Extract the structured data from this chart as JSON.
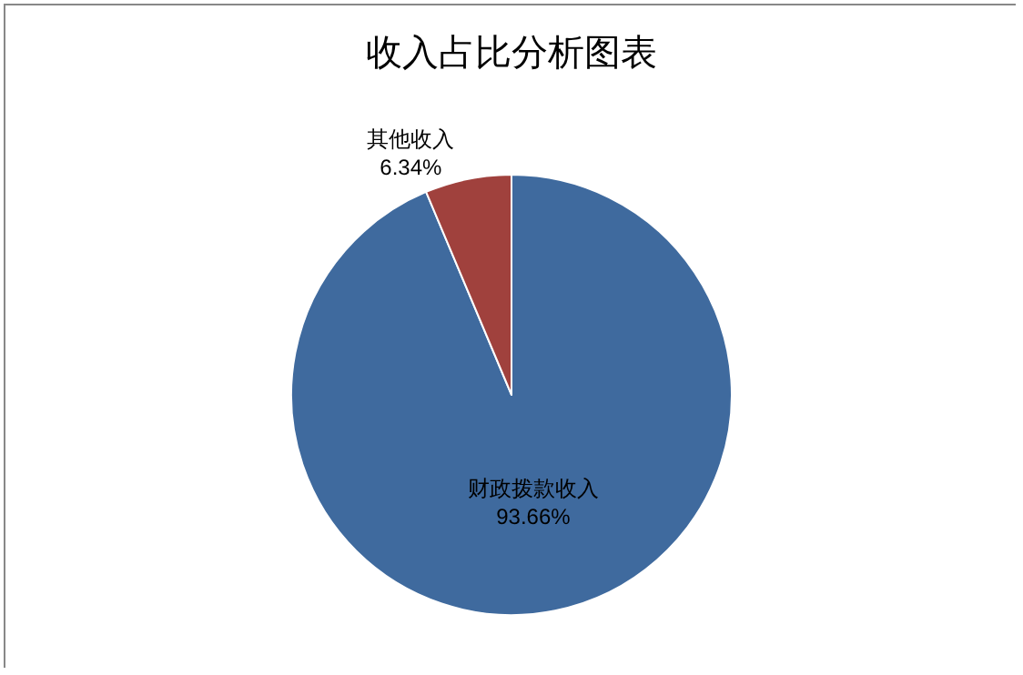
{
  "chart_data": {
    "type": "pie",
    "title": "收入占比分析图表",
    "categories": [
      "财政拨款收入",
      "其他收入"
    ],
    "values": [
      93.66,
      6.34
    ],
    "value_labels": [
      "93.66%",
      "6.34%"
    ],
    "colors": [
      "#3f6a9e",
      "#a0413d"
    ],
    "legend": false
  }
}
